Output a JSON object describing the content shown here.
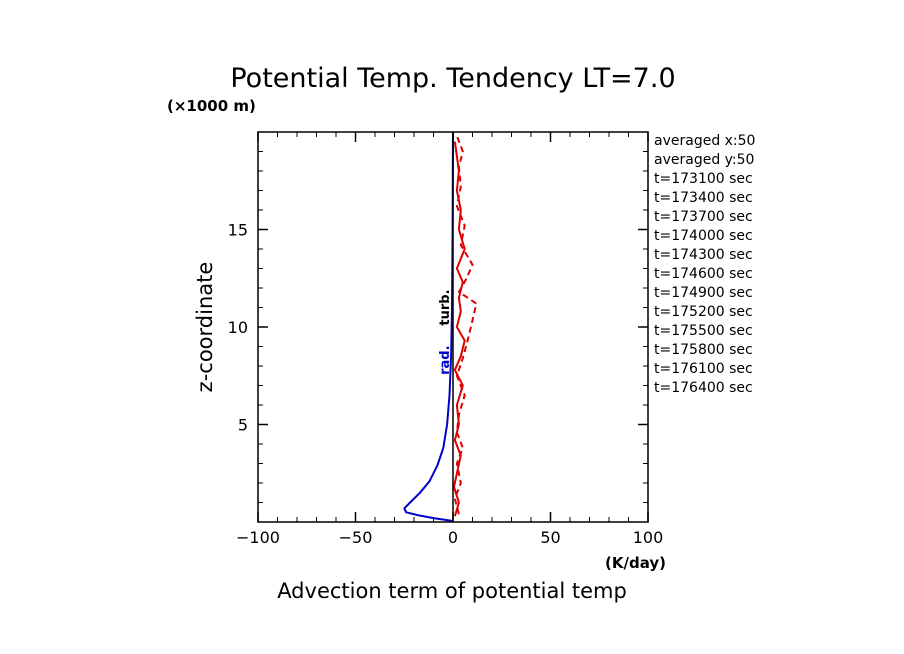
{
  "chart_data": {
    "type": "line",
    "title": "Potential Temp. Tendency LT=7.0",
    "y_unit": "(×1000 m)",
    "x_unit": "(K/day)",
    "xlabel": "Advection term of potential temp",
    "ylabel": "z-coordinate",
    "xlim": [
      -100,
      100
    ],
    "ylim": [
      0,
      20
    ],
    "x_ticks": [
      -100,
      -50,
      0,
      50,
      100
    ],
    "y_ticks": [
      5,
      10,
      15
    ],
    "grid": false,
    "legend_position": "right",
    "legend_entries": [
      "averaged  x:50",
      "averaged  y:50",
      "t=173100 sec",
      "t=173400 sec",
      "t=173700 sec",
      "t=174000 sec",
      "t=174300 sec",
      "t=174600 sec",
      "t=174900 sec",
      "t=175200 sec",
      "t=175500 sec",
      "t=175800 sec",
      "t=176100 sec",
      "t=176400 sec"
    ],
    "series": [
      {
        "color": "#0000cc",
        "style": "solid",
        "x": [
          0,
          -10,
          -18,
          -24,
          -25,
          -22,
          -17,
          -12,
          -8,
          -5,
          -3,
          -1.8,
          -1,
          -0.5,
          -0.2,
          0
        ],
        "y": [
          0.05,
          0.2,
          0.35,
          0.5,
          0.7,
          1.0,
          1.5,
          2.1,
          2.9,
          3.8,
          5.0,
          6.5,
          8.5,
          11.0,
          15.0,
          20.0
        ]
      },
      {
        "color": "#dd0000",
        "style": "solid",
        "x": [
          1,
          3,
          0.5,
          2,
          4,
          1,
          3,
          2,
          5,
          1,
          4,
          6,
          2,
          4,
          3,
          5,
          2,
          6,
          3,
          4,
          2,
          3,
          1
        ],
        "y": [
          0.3,
          1.0,
          1.8,
          2.5,
          3.4,
          4.2,
          5.0,
          6.0,
          7.0,
          7.8,
          8.5,
          9.3,
          10.0,
          10.8,
          11.5,
          12.3,
          13.0,
          14.0,
          15.0,
          16.0,
          17.0,
          18.0,
          19.5
        ]
      },
      {
        "color": "#dd0000",
        "style": "dashed",
        "x": [
          3,
          1,
          4,
          2,
          5,
          2,
          3,
          6,
          2,
          5,
          8,
          12,
          3,
          7,
          10,
          4,
          6,
          2,
          4,
          3,
          5,
          2
        ],
        "y": [
          0.4,
          1.2,
          2.0,
          3.0,
          3.8,
          4.6,
          5.5,
          6.5,
          7.5,
          8.4,
          9.5,
          11.2,
          11.8,
          12.5,
          13.2,
          14.2,
          15.2,
          16.2,
          17.2,
          18.2,
          19.0,
          19.8
        ]
      },
      {
        "color": "#000000",
        "style": "solid",
        "x": [
          0,
          0,
          0
        ],
        "y": [
          0,
          10,
          20
        ]
      }
    ],
    "annotations": [
      {
        "text": "turb.",
        "color": "#000000",
        "x": -2,
        "y": 11
      },
      {
        "text": "rad.",
        "color": "#0000cc",
        "x": -2,
        "y": 8.3
      }
    ]
  }
}
